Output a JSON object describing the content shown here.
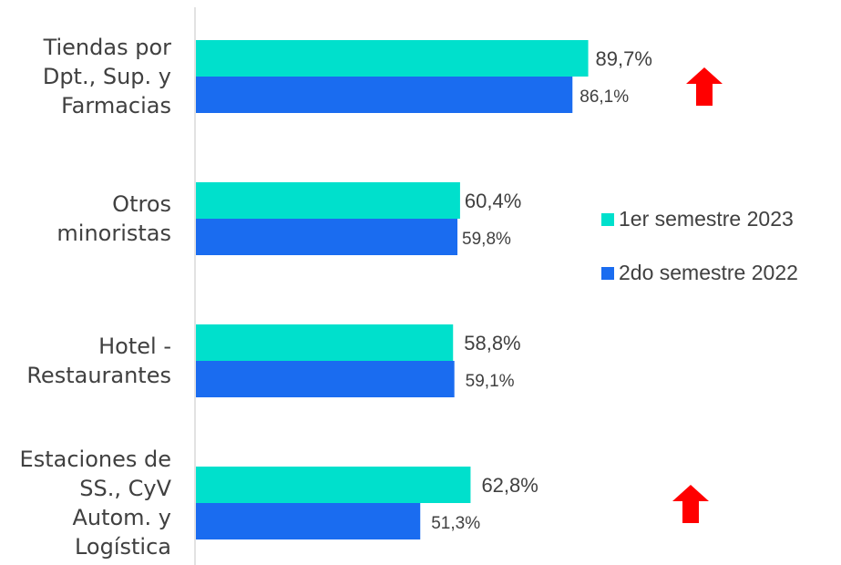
{
  "chart_data": {
    "type": "bar",
    "orientation": "horizontal",
    "categories": [
      [
        "Tiendas por",
        "Dpt., Sup. y",
        "Farmacias"
      ],
      [
        "Otros",
        "minoristas"
      ],
      [
        "Hotel -",
        "Restaurantes"
      ],
      [
        "Estaciones de",
        "SS., CyV",
        "Autom. y",
        "Logística"
      ]
    ],
    "series": [
      {
        "name": "1er semestre 2023",
        "color": "#00E0CC",
        "values": [
          89.7,
          60.4,
          58.8,
          62.8
        ],
        "labels": [
          "89,7%",
          "60,4%",
          "58,8%",
          "62,8%"
        ]
      },
      {
        "name": "2do semestre 2022",
        "color": "#1A6CF0",
        "values": [
          86.1,
          59.8,
          59.1,
          51.3
        ],
        "labels": [
          "86,1%",
          "59,8%",
          "59,1%",
          "51,3%"
        ]
      }
    ],
    "xlim": [
      0,
      100
    ],
    "grid": false,
    "legend": "right",
    "up_arrows": [
      0,
      3
    ],
    "arrow_color": "#FF0000"
  }
}
